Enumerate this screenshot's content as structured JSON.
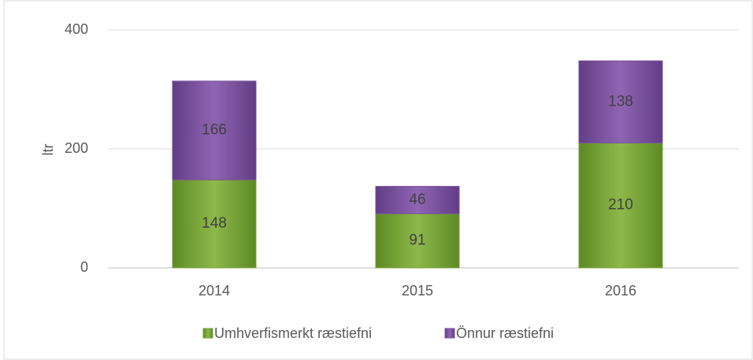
{
  "chart_data": {
    "type": "stacked_bar",
    "y_label": "ltr",
    "categories": [
      "2014",
      "2015",
      "2016"
    ],
    "series": [
      {
        "name": "Umhverfismerkt ræstiefni",
        "color": "#77a03a",
        "values": [
          148,
          91,
          210
        ]
      },
      {
        "name": "Önnur ræstiefni",
        "color": "#7b519d",
        "values": [
          166,
          46,
          138
        ]
      }
    ],
    "ylim": [
      0,
      400
    ],
    "yticks": [
      0,
      200,
      400
    ],
    "grid": true,
    "legend": "bottom"
  }
}
